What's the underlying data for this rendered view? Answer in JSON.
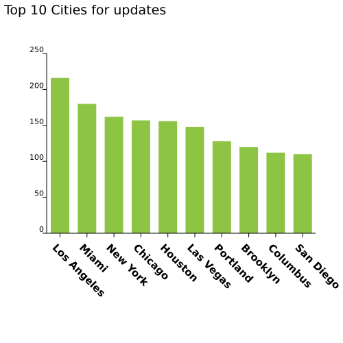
{
  "chart_data": {
    "type": "bar",
    "title": "Top 10 Cities for updates",
    "xlabel": "",
    "ylabel": "",
    "categories": [
      "Los Angeles",
      "Miami",
      "New York",
      "Chicago",
      "Houston",
      "Las Vegas",
      "Portland",
      "Brooklyn",
      "Columbus",
      "San Diego"
    ],
    "values": [
      216,
      180,
      162,
      157,
      156,
      148,
      128,
      120,
      112,
      110
    ],
    "ylim": [
      0,
      250
    ],
    "yticks": [
      0,
      50,
      100,
      150,
      200,
      250
    ],
    "grid": false,
    "legend": "none",
    "bar_color": "#8dc444",
    "axis_color": "#000000"
  }
}
